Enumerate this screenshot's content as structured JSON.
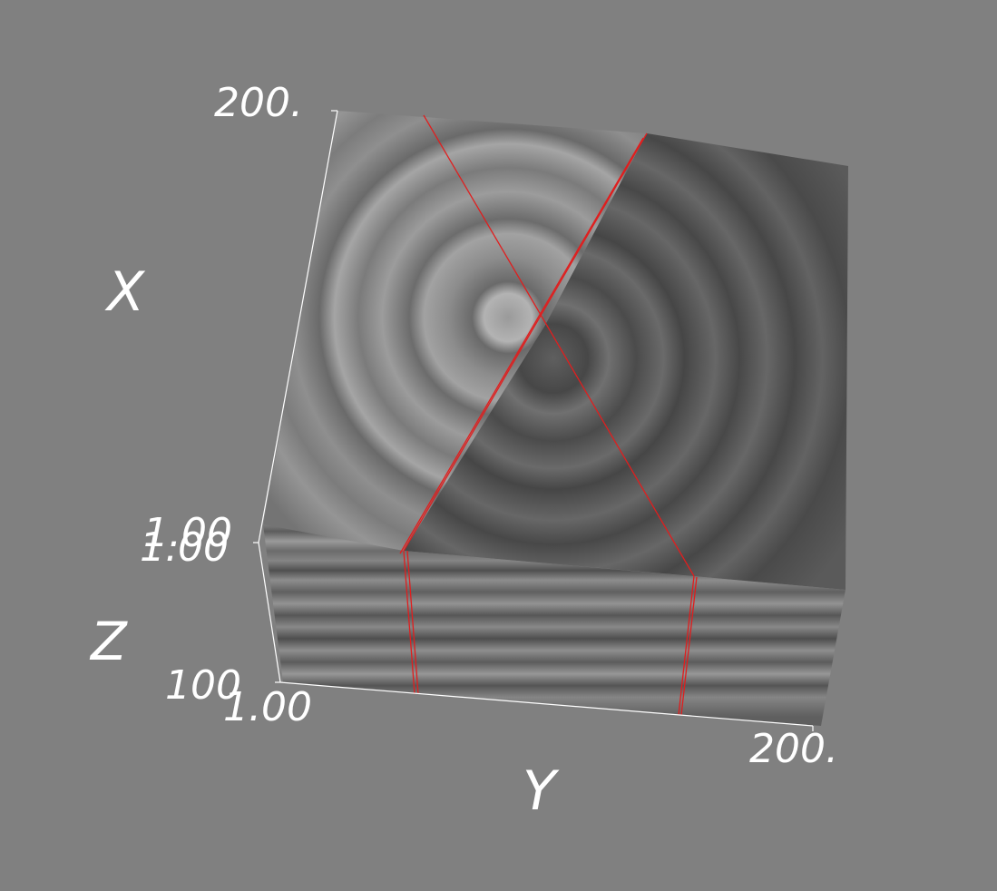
{
  "scene": {
    "background": "#808080",
    "volume_slice_colors": {
      "light": "#a9a9a9",
      "mid": "#6e6e6e",
      "dark": "#4d4d4d",
      "cut_line": "#e01e1e",
      "axis_line": "#ffffff",
      "text": "#ffffff"
    }
  },
  "axes": {
    "x": {
      "title": "X",
      "tick_max": "200."
    },
    "y": {
      "title": "Y",
      "tick_min": "1.00",
      "tick_max": "200."
    },
    "z": {
      "title": "Z",
      "tick_min_a": "1.00",
      "tick_min_b": "1.00",
      "tick_max": "100"
    }
  }
}
